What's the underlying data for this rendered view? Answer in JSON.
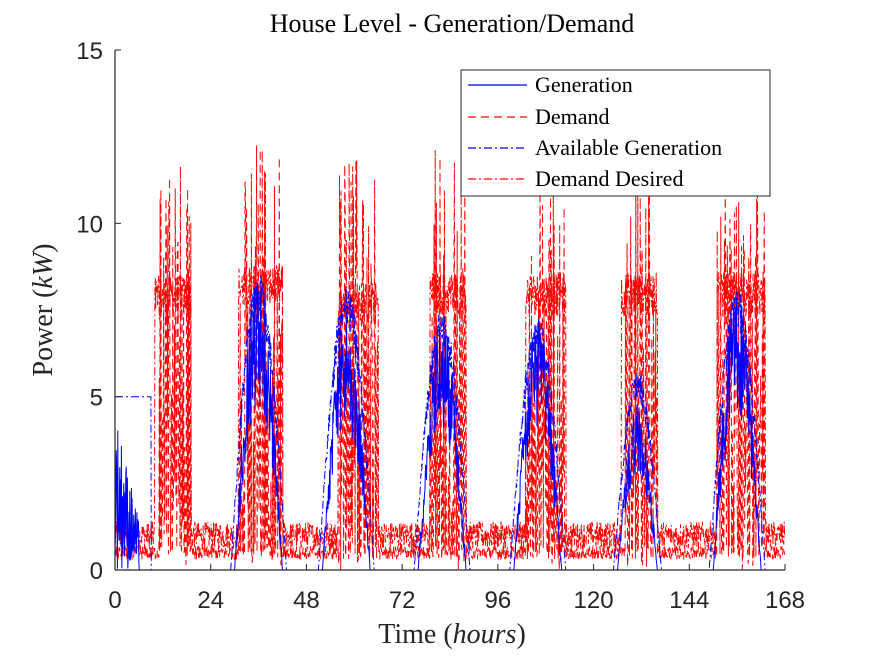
{
  "chart_data": {
    "type": "line",
    "title": "House Level - Generation/Demand",
    "xlabel": "Time",
    "xlabel_unit": "hours",
    "ylabel": "Power",
    "ylabel_unit": "kW",
    "xlim": [
      0,
      168
    ],
    "ylim": [
      0,
      15
    ],
    "x_ticks": [
      0,
      24,
      48,
      72,
      96,
      120,
      144,
      168
    ],
    "x_tick_labels": [
      "0",
      "24",
      "48",
      "72",
      "96",
      "120",
      "144",
      "168"
    ],
    "y_ticks": [
      0,
      5,
      10,
      15
    ],
    "y_tick_labels": [
      "0",
      "5",
      "10",
      "15"
    ],
    "grid": false,
    "legend_position": "top-right",
    "series": [
      {
        "name": "Generation",
        "color": "#0000ff",
        "style": "solid",
        "peaks": [
          {
            "center": 36,
            "half_width": 6,
            "height": 8.5
          },
          {
            "center": 58,
            "half_width": 6,
            "height": 7.5
          },
          {
            "center": 82,
            "half_width": 6,
            "height": 7.4
          },
          {
            "center": 106,
            "half_width": 6,
            "height": 7.2
          },
          {
            "center": 131,
            "half_width": 5,
            "height": 4.8
          },
          {
            "center": 156,
            "half_width": 6,
            "height": 8.0
          }
        ],
        "early": {
          "start": 0,
          "end": 6,
          "height": 4.7
        }
      },
      {
        "name": "Demand",
        "color": "#ff0000",
        "style": "dashed",
        "base": 0.5,
        "bursts": [
          {
            "start": 11,
            "end": 19,
            "height": 11.7
          },
          {
            "start": 31,
            "end": 42,
            "height": 12.7
          },
          {
            "start": 56,
            "end": 66,
            "height": 12.0
          },
          {
            "start": 79,
            "end": 88,
            "height": 12.5
          },
          {
            "start": 103,
            "end": 113,
            "height": 11.5
          },
          {
            "start": 128,
            "end": 136,
            "height": 11.5
          },
          {
            "start": 151,
            "end": 163,
            "height": 11.5
          }
        ]
      },
      {
        "name": "Available Generation",
        "color": "#0000ff",
        "style": "dashdot",
        "peaks": [
          {
            "center": 36,
            "half_width": 7,
            "height": 8.6
          },
          {
            "center": 58,
            "half_width": 7,
            "height": 8.2
          },
          {
            "center": 82,
            "half_width": 7,
            "height": 7.6
          },
          {
            "center": 106,
            "half_width": 7,
            "height": 7.4
          },
          {
            "center": 131,
            "half_width": 6,
            "height": 5.8
          },
          {
            "center": 156,
            "half_width": 7,
            "height": 8.1
          }
        ],
        "early": {
          "start": 0,
          "end": 9,
          "height": 5.0
        }
      },
      {
        "name": "Demand Desired",
        "color": "#ff0000",
        "style": "dashdot",
        "base": 1.0,
        "plateaus": [
          {
            "start": 10,
            "end": 19,
            "height": 8.5
          },
          {
            "start": 31,
            "end": 42,
            "height": 8.8
          },
          {
            "start": 56,
            "end": 66,
            "height": 8.3
          },
          {
            "start": 79,
            "end": 88,
            "height": 8.6
          },
          {
            "start": 103,
            "end": 113,
            "height": 8.6
          },
          {
            "start": 127,
            "end": 136,
            "height": 8.6
          },
          {
            "start": 151,
            "end": 163,
            "height": 8.6
          }
        ]
      }
    ]
  }
}
